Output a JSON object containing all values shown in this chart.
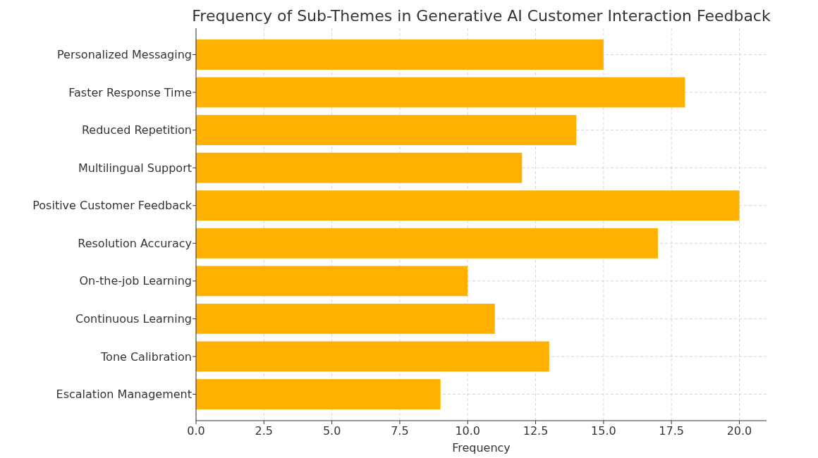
{
  "chart_data": {
    "type": "bar",
    "orientation": "horizontal",
    "title": "Frequency of Sub-Themes in Generative AI Customer Interaction Feedback",
    "xlabel": "Frequency",
    "categories": [
      "Personalized Messaging",
      "Faster Response Time",
      "Reduced Repetition",
      "Multilingual Support",
      "Positive Customer Feedback",
      "Resolution Accuracy",
      "On-the-job Learning",
      "Continuous Learning",
      "Tone Calibration",
      "Escalation Management"
    ],
    "values": [
      15,
      18,
      14,
      12,
      20,
      17,
      10,
      11,
      13,
      9
    ],
    "color": "#ffb000",
    "xlim": [
      0,
      21
    ],
    "xticks": [
      {
        "value": 0,
        "label": "0.0"
      },
      {
        "value": 2.5,
        "label": "2.5"
      },
      {
        "value": 5,
        "label": "5.0"
      },
      {
        "value": 7.5,
        "label": "7.5"
      },
      {
        "value": 10,
        "label": "10.0"
      },
      {
        "value": 12.5,
        "label": "12.5"
      },
      {
        "value": 15,
        "label": "15.0"
      },
      {
        "value": 17.5,
        "label": "17.5"
      },
      {
        "value": 20,
        "label": "20.0"
      }
    ],
    "grid": true
  }
}
